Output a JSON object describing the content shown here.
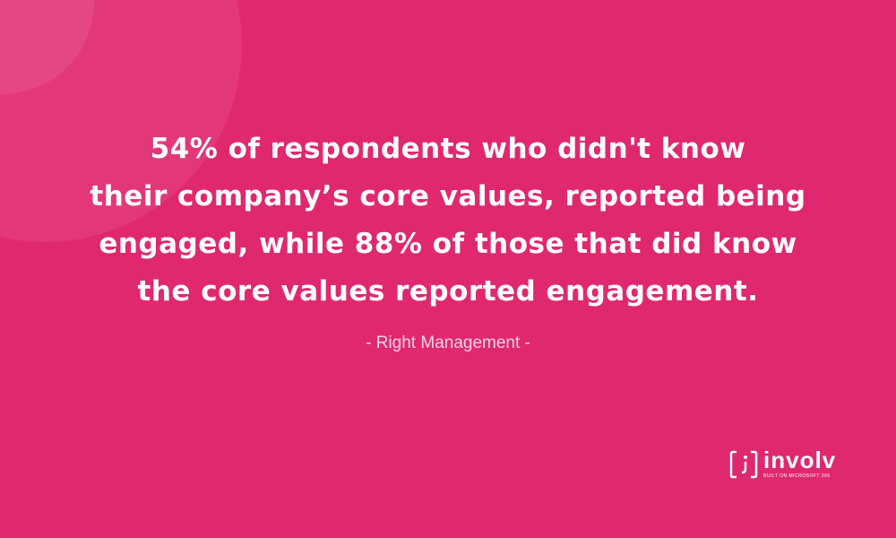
{
  "quote": {
    "lines": [
      "54% of respondents who didn't know",
      "their company’s core values, reported being",
      "engaged, while 88% of those that did know",
      "the core values reported engagement."
    ],
    "attribution": "- Right Management -"
  },
  "logo": {
    "name": "involv",
    "tagline": "BUILT ON MICROSOFT 365"
  }
}
